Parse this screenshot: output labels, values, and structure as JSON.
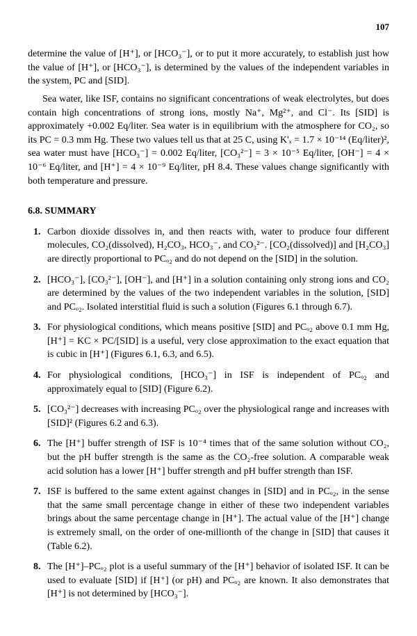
{
  "page_number": "107",
  "para1": "determine the value of [H⁺], or [HCO₃⁻], or to put it more accurately, to establish just how the value of [H⁺], or [HCO₃⁻], is determined by the values of the independent variables in the system, PC and [SID].",
  "para2": "Sea water, like ISF, contains no significant concentrations of weak electrolytes, but does contain high concentrations of strong ions, mostly Na⁺, Mg²⁺, and Cl⁻. Its [SID] is approximately +0.002 Eq/liter. Sea water is in equilibrium with the atmosphere for CO₂, so its PC = 0.3 mm Hg. These two values tell us that at 25 C, using K'ₓ = 1.7 × 10⁻¹⁴ (Eq/liter)², sea water must have [HCO₃⁻] = 0.002 Eq/liter, [CO₃²⁻] = 3 × 10⁻⁵ Eq/liter, [OH⁻] = 4 × 10⁻⁶ Eq/liter, and [H⁺] = 4 × 10⁻⁹ Eq/liter, pH 8.4. These values change significantly with both temperature and pressure.",
  "section_head": "6.8. SUMMARY",
  "items": [
    "Carbon dioxide dissolves in, and then reacts with, water to produce four different molecules, CO₂(dissolved), H₂CO₃, HCO₃⁻, and CO₃²⁻. [CO₂(dissolved)] and [H₂CO₃] are directly proportional to PCₒ₂ and do not depend on the [SID] in the solution.",
    "[HCO₃⁻], [CO₃²⁻], [OH⁻], and [H⁺] in a solution containing only strong ions and CO₂ are determined by the values of the two independent variables in the solution, [SID] and PCₒ₂. Isolated interstitial fluid is such a solution (Figures 6.1 through 6.7).",
    "For physiological conditions, which means positive [SID] and PCₒ₂ above 0.1 mm Hg, [H⁺] = KC × PC/[SID] is a useful, very close approximation to the exact equation that is cubic in [H⁺] (Figures 6.1, 6.3, and 6.5).",
    "For physiological conditions, [HCO₃⁻] in ISF is independent of PCₒ₂ and approximately equal to [SID] (Figure 6.2).",
    "[CO₃²⁻] decreases with increasing PCₒ₂ over the physiological range and increases with [SID]² (Figures 6.2 and 6.3).",
    "The [H⁺] buffer strength of ISF is 10⁻⁴ times that of the same solution without CO₂, but the pH buffer strength is the same as the CO₂-free solution. A comparable weak acid solution has a lower [H⁺] buffer strength and pH buffer strength than ISF.",
    "ISF is buffered to the same extent against changes in [SID] and in PCₒ₂, in the sense that the same small percentage change in either of these two independent variables brings about the same percentage change in [H⁺]. The actual value of the [H⁺] change is extremely small, on the order of one-millionth of the change in [SID] that causes it (Table 6.2).",
    "The [H⁺]–PCₒ₂ plot is a useful summary of the [H⁺] behavior of isolated ISF. It can be used to evaluate [SID] if [H⁺] (or pH) and PCₒ₂ are known. It also demonstrates that [H⁺] is not determined by [HCO₃⁻]."
  ]
}
